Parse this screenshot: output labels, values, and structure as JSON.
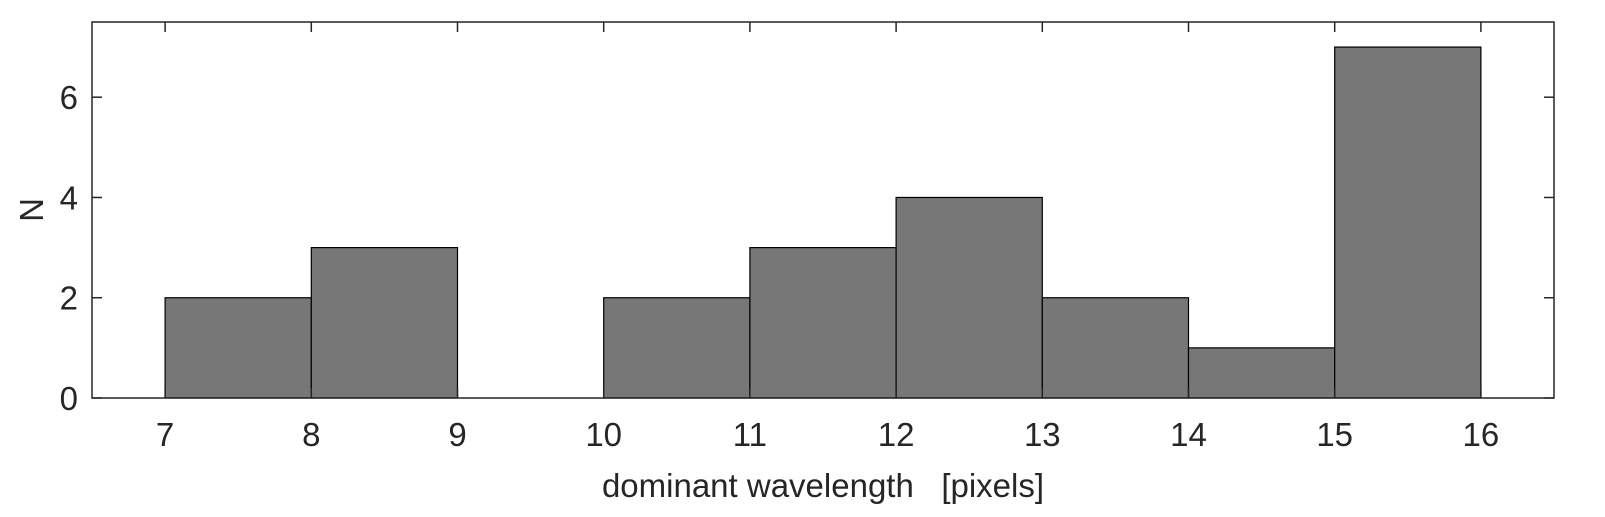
{
  "chart_data": {
    "type": "bar",
    "title": "",
    "xlabel": "dominant wavelength   [pixels]",
    "ylabel": "N",
    "bins": [
      [
        7,
        8
      ],
      [
        8,
        9
      ],
      [
        9,
        10
      ],
      [
        10,
        11
      ],
      [
        11,
        12
      ],
      [
        12,
        13
      ],
      [
        13,
        14
      ],
      [
        14,
        15
      ],
      [
        15,
        16
      ]
    ],
    "values": [
      2,
      3,
      0,
      2,
      3,
      4,
      2,
      1,
      7
    ],
    "xlim": [
      6.5,
      16.5
    ],
    "ylim": [
      0,
      7.5
    ],
    "xticks": [
      7,
      8,
      9,
      10,
      11,
      12,
      13,
      14,
      15,
      16
    ],
    "xtick_labels": [
      "7",
      "8",
      "9",
      "10",
      "11",
      "12",
      "13",
      "14",
      "15",
      "16"
    ],
    "yticks": [
      0,
      2,
      4,
      6
    ],
    "ytick_labels": [
      "0",
      "2",
      "4",
      "6"
    ],
    "grid": false,
    "legend": "none",
    "bar_color": "#777777",
    "edge_color": "#000000",
    "text_color": "#262626"
  }
}
